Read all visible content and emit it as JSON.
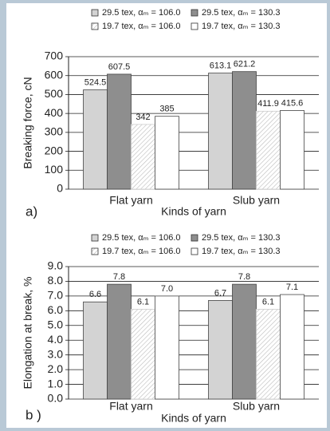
{
  "chart_data": [
    {
      "type": "bar",
      "panel_label": "a)",
      "ylabel": "Breaking force, cN",
      "xlabel": "Kinds of yarn",
      "categories": [
        "Flat yarn",
        "Slub yarn"
      ],
      "series": [
        {
          "name": "29.5 tex, αₘ = 106.0",
          "color": "#d3d3d3",
          "values": [
            524.5,
            613.1
          ]
        },
        {
          "name": "29.5 tex, αₘ = 130.3",
          "color": "#8e8e8e",
          "values": [
            607.5,
            621.2
          ]
        },
        {
          "name": "19.7 tex, αₘ = 106.0",
          "color": "#ffffff",
          "hatch": true,
          "values": [
            342,
            411.9
          ]
        },
        {
          "name": "19.7 tex, αₘ = 130.3",
          "color": "#ffffff",
          "values": [
            385,
            415.6
          ]
        }
      ],
      "ylim": [
        0,
        700
      ],
      "yticks": [
        0,
        100,
        200,
        300,
        400,
        500,
        600,
        700
      ],
      "grid": true,
      "legend": "top"
    },
    {
      "type": "bar",
      "panel_label": "b )",
      "ylabel": "Elongation at break, %",
      "xlabel": "Kinds of yarn",
      "categories": [
        "Flat yarn",
        "Slub yarn"
      ],
      "series": [
        {
          "name": "29.5 tex, αₘ = 106.0",
          "color": "#d3d3d3",
          "values": [
            6.6,
            6.7
          ]
        },
        {
          "name": "29.5 tex, αₘ = 130.3",
          "color": "#8e8e8e",
          "values": [
            7.8,
            7.8
          ]
        },
        {
          "name": "19.7 tex, αₘ = 106.0",
          "color": "#ffffff",
          "hatch": true,
          "values": [
            6.1,
            6.1
          ]
        },
        {
          "name": "19.7 tex, αₘ = 130.3",
          "color": "#ffffff",
          "values": [
            7,
            7.1
          ],
          "value_labels": [
            "7.0",
            "7.1"
          ]
        }
      ],
      "ylim": [
        0,
        9
      ],
      "yticks": [
        {
          "value": 0,
          "label": "0.0"
        },
        {
          "value": 1,
          "label": "1.0"
        },
        {
          "value": 2,
          "label": "2.0"
        },
        {
          "value": 3,
          "label": "3.0"
        },
        {
          "value": 4,
          "label": "4.0"
        },
        {
          "value": 5,
          "label": "5.0"
        },
        {
          "value": 6,
          "label": "6.0"
        },
        {
          "value": 7,
          "label": "7.0"
        },
        {
          "value": 8,
          "label": "8.0"
        },
        {
          "value": 9,
          "label": "9.0"
        }
      ],
      "grid": true,
      "legend": "top"
    }
  ]
}
